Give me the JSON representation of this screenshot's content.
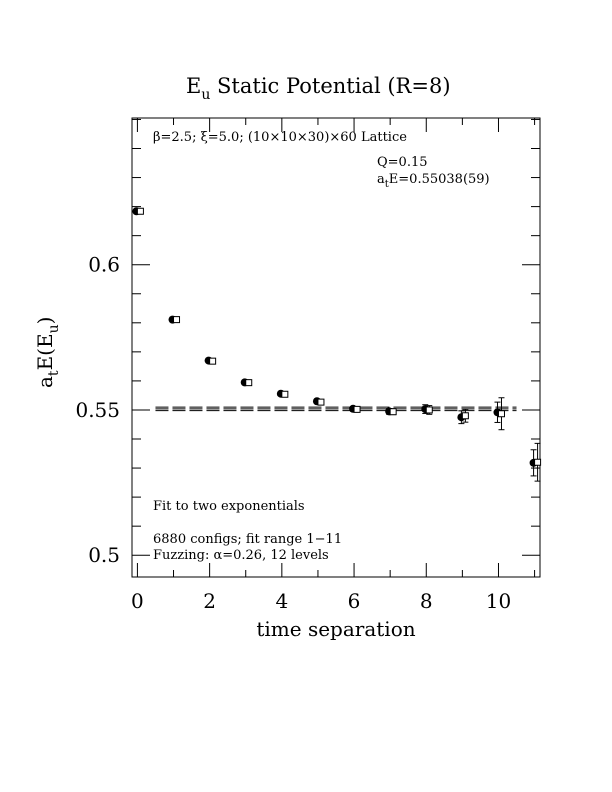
{
  "chart_data": {
    "type": "scatter",
    "title_main": "E",
    "title_sub": "u",
    "title_rest": " Static Potential (R=8)",
    "xlabel": "time separation",
    "ylabel_a": "a",
    "ylabel_t": "t",
    "ylabel_E": "E(E",
    "ylabel_u": "u",
    "ylabel_close": ")",
    "xlim": [
      -0.15,
      11.15
    ],
    "ylim": [
      0.4925,
      0.6505
    ],
    "xticks": [
      0,
      2,
      4,
      6,
      8,
      10
    ],
    "xtick_labels": [
      "0",
      "2",
      "4",
      "6",
      "8",
      "10"
    ],
    "yticks": [
      0.5,
      0.55,
      0.6
    ],
    "ytick_labels": [
      "0.5",
      "0.55",
      "0.6"
    ],
    "annotations": {
      "lattice": "β=2.5; ξ=5.0; (10×10×30)×60 Lattice",
      "q_value": "Q=0.15",
      "energy_a": "a",
      "energy_t": "t",
      "energy_rest": "E=0.55038(59)",
      "fit_method": "Fit to two exponentials",
      "configs": "6880 configs; fit range 1−11",
      "fuzzing": "Fuzzing: α=0.26, 12 levels"
    },
    "fit_line": {
      "value": 0.55038,
      "error": 0.00059,
      "x_range": [
        0.5,
        10.5
      ]
    },
    "series": [
      {
        "marker": "filled-circle",
        "x": [
          0,
          1,
          2,
          3,
          4,
          5,
          6,
          7,
          8,
          9,
          10,
          11
        ],
        "y": [
          0.6184,
          0.5811,
          0.567,
          0.5595,
          0.5556,
          0.553,
          0.5504,
          0.5495,
          0.5503,
          0.5475,
          0.5492,
          0.5318
        ],
        "err": [
          0.0004,
          0.0004,
          0.0005,
          0.0005,
          0.0005,
          0.0006,
          0.0008,
          0.001,
          0.0015,
          0.0022,
          0.0035,
          0.0045
        ]
      },
      {
        "marker": "open-square",
        "x": [
          0,
          1,
          2,
          3,
          4,
          5,
          6,
          7,
          8,
          9,
          10,
          11
        ],
        "y": [
          0.6184,
          0.5811,
          0.5668,
          0.5594,
          0.5554,
          0.5527,
          0.5502,
          0.5494,
          0.55,
          0.548,
          0.5487,
          0.532
        ],
        "err": [
          0.0004,
          0.0004,
          0.0005,
          0.0005,
          0.0005,
          0.0006,
          0.0008,
          0.001,
          0.0015,
          0.0022,
          0.0055,
          0.0065
        ]
      }
    ]
  }
}
